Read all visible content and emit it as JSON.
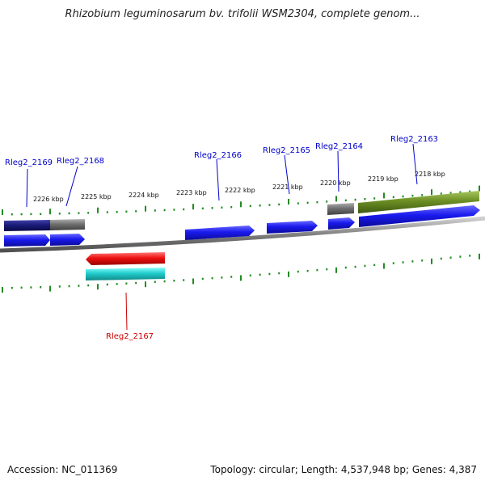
{
  "header": {
    "title": "Rhizobium leguminosarum bv. trifolii WSM2304, complete genom..."
  },
  "footer": {
    "accession": "Accession: NC_011369",
    "summary": "Topology: circular; Length: 4,537,948 bp; Genes: 4,387"
  },
  "ruler": {
    "labels": [
      "2226 kbp",
      "2225 kbp",
      "2224 kbp",
      "2223 kbp",
      "2222 kbp",
      "2221 kbp",
      "2220 kbp",
      "2219 kbp",
      "2218 kbp"
    ]
  },
  "genes": [
    {
      "name": "Rleg2_2169",
      "color": "#0000cc"
    },
    {
      "name": "Rleg2_2168",
      "color": "#0000cc"
    },
    {
      "name": "Rleg2_2166",
      "color": "#0000cc"
    },
    {
      "name": "Rleg2_2165",
      "color": "#0000cc"
    },
    {
      "name": "Rleg2_2164",
      "color": "#0000cc"
    },
    {
      "name": "Rleg2_2163",
      "color": "#0000cc"
    },
    {
      "name": "Rleg2_2167",
      "color": "#cc0000"
    }
  ],
  "colors": {
    "gene_forward": "#1a1aee",
    "gene_reverse": "#ee1111",
    "rna_teal": "#22cccc",
    "feature_navy": "#1a1a7a",
    "feature_gray": "#707070",
    "feature_olive": "#6b8e23",
    "tick_green": "#228b22",
    "backbone": "#808080"
  }
}
